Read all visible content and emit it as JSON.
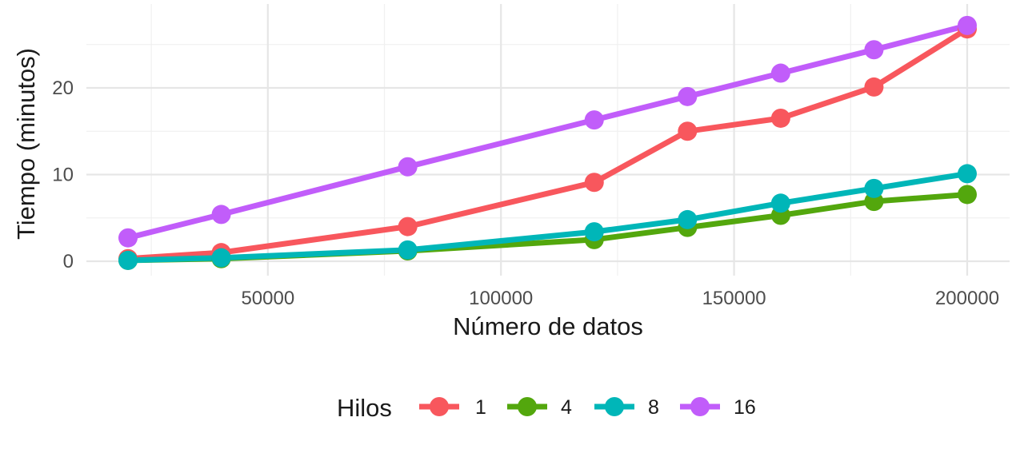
{
  "chart_data": {
    "type": "line",
    "xlabel": "Número de datos",
    "ylabel": "Tiempo (minutos)",
    "xlim": [
      20000,
      200000
    ],
    "ylim": [
      0,
      27.3
    ],
    "x_ticks": [
      50000,
      100000,
      150000,
      200000
    ],
    "x_tick_labels": [
      "50000",
      "100000",
      "150000",
      "200000"
    ],
    "y_ticks": [
      0,
      10,
      20
    ],
    "y_tick_labels": [
      "0",
      "10",
      "20"
    ],
    "grid": true,
    "legend": {
      "title": "Hilos",
      "position": "bottom"
    },
    "x": [
      20000,
      40000,
      80000,
      120000,
      140000,
      160000,
      180000,
      200000
    ],
    "series": [
      {
        "name": "1",
        "color": "#F8575D",
        "values": [
          0.3,
          1.0,
          4.0,
          9.1,
          15.0,
          16.5,
          20.1,
          26.8
        ]
      },
      {
        "name": "4",
        "color": "#53A70D",
        "values": [
          0.1,
          0.3,
          1.2,
          2.5,
          3.9,
          5.3,
          6.9,
          7.7
        ]
      },
      {
        "name": "8",
        "color": "#00B6B8",
        "values": [
          0.1,
          0.4,
          1.3,
          3.4,
          4.8,
          6.7,
          8.4,
          10.1
        ]
      },
      {
        "name": "16",
        "color": "#C15DFA",
        "values": [
          2.7,
          5.4,
          10.9,
          16.3,
          19.0,
          21.7,
          24.4,
          27.2
        ]
      }
    ]
  }
}
